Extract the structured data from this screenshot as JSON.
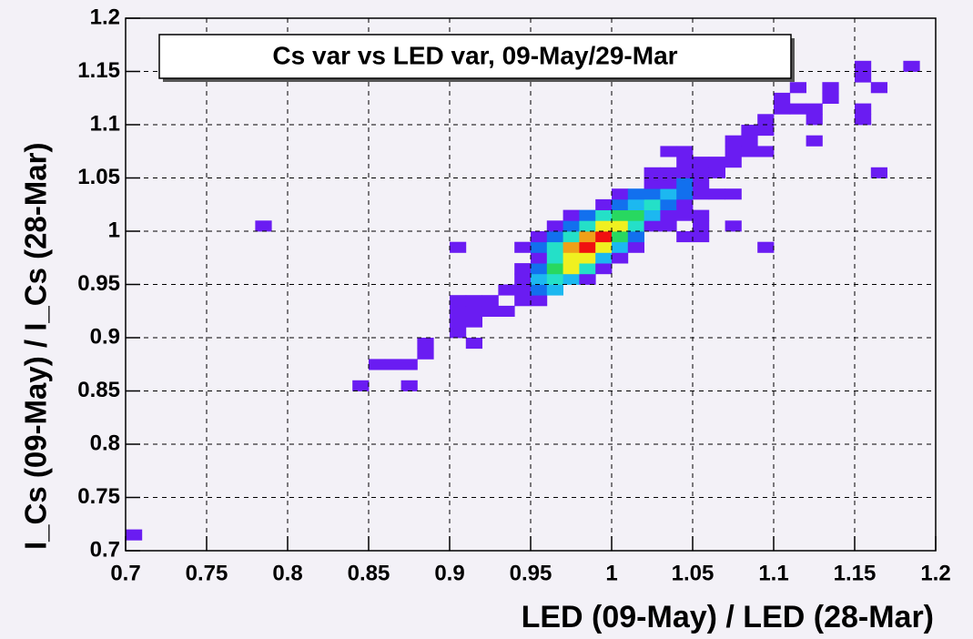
{
  "chart_data": {
    "type": "histogram2d",
    "title": "Cs var vs LED var, 09-May/29-Mar",
    "x_label": "LED (09-May) / LED (28-Mar)",
    "y_label": "I_Cs (09-May) / I_Cs (28-Mar)",
    "xlim": [
      0.7,
      1.2
    ],
    "ylim": [
      0.7,
      1.2
    ],
    "xticks": [
      0.7,
      0.75,
      0.8,
      0.85,
      0.9,
      0.95,
      1,
      1.05,
      1.1,
      1.15,
      1.2
    ],
    "yticks": [
      0.7,
      0.75,
      0.8,
      0.85,
      0.9,
      0.95,
      1,
      1.05,
      1.1,
      1.15,
      1.2
    ],
    "grid": true,
    "bin_size": 0.01,
    "palette": [
      "#6a1cf2",
      "#3a32f4",
      "#1270ee",
      "#1cb8f0",
      "#24e0c8",
      "#28d860",
      "#f0f020",
      "#f0a018",
      "#f01010"
    ],
    "cells": [
      [
        0.705,
        0.715,
        1
      ],
      [
        0.845,
        0.855,
        1
      ],
      [
        0.875,
        0.855,
        1
      ],
      [
        0.855,
        0.875,
        1
      ],
      [
        0.865,
        0.875,
        1
      ],
      [
        0.875,
        0.875,
        1
      ],
      [
        0.885,
        0.885,
        1
      ],
      [
        0.885,
        0.895,
        1
      ],
      [
        0.915,
        0.895,
        1
      ],
      [
        0.905,
        0.905,
        1
      ],
      [
        0.905,
        0.915,
        1
      ],
      [
        0.915,
        0.915,
        1
      ],
      [
        0.905,
        0.925,
        1
      ],
      [
        0.915,
        0.925,
        1
      ],
      [
        0.925,
        0.925,
        1
      ],
      [
        0.935,
        0.925,
        1
      ],
      [
        0.905,
        0.935,
        1
      ],
      [
        0.915,
        0.935,
        1
      ],
      [
        0.925,
        0.935,
        1
      ],
      [
        0.945,
        0.935,
        1
      ],
      [
        0.955,
        0.935,
        1
      ],
      [
        0.935,
        0.945,
        1
      ],
      [
        0.945,
        0.945,
        1
      ],
      [
        0.955,
        0.945,
        2
      ],
      [
        0.965,
        0.945,
        3
      ],
      [
        0.945,
        0.955,
        1
      ],
      [
        0.955,
        0.955,
        3
      ],
      [
        0.965,
        0.955,
        5
      ],
      [
        0.975,
        0.955,
        3
      ],
      [
        0.985,
        0.955,
        1
      ],
      [
        0.945,
        0.965,
        1
      ],
      [
        0.955,
        0.965,
        2
      ],
      [
        0.965,
        0.965,
        6
      ],
      [
        0.975,
        0.965,
        8
      ],
      [
        0.985,
        0.965,
        4
      ],
      [
        0.995,
        0.965,
        1
      ],
      [
        0.955,
        0.975,
        1
      ],
      [
        0.965,
        0.975,
        4
      ],
      [
        0.975,
        0.975,
        11
      ],
      [
        0.985,
        0.975,
        9
      ],
      [
        0.995,
        0.975,
        3
      ],
      [
        1.005,
        0.975,
        1
      ],
      [
        0.905,
        0.985,
        1
      ],
      [
        0.945,
        0.985,
        1
      ],
      [
        0.955,
        0.985,
        2
      ],
      [
        0.965,
        0.985,
        5
      ],
      [
        0.975,
        0.985,
        14
      ],
      [
        0.985,
        0.985,
        20
      ],
      [
        0.995,
        0.985,
        10
      ],
      [
        1.005,
        0.985,
        3
      ],
      [
        1.015,
        0.985,
        1
      ],
      [
        1.095,
        0.985,
        1
      ],
      [
        0.955,
        0.995,
        1
      ],
      [
        0.965,
        0.995,
        2
      ],
      [
        0.975,
        0.995,
        4
      ],
      [
        0.985,
        0.995,
        12
      ],
      [
        0.995,
        0.995,
        17
      ],
      [
        1.005,
        0.995,
        7
      ],
      [
        1.015,
        0.995,
        2
      ],
      [
        1.045,
        0.995,
        1
      ],
      [
        1.055,
        0.995,
        1
      ],
      [
        0.785,
        1.005,
        1
      ],
      [
        0.965,
        1.005,
        1
      ],
      [
        0.975,
        1.005,
        2
      ],
      [
        0.985,
        1.005,
        5
      ],
      [
        0.995,
        1.005,
        8
      ],
      [
        1.005,
        1.005,
        10
      ],
      [
        1.015,
        1.005,
        4
      ],
      [
        1.025,
        1.005,
        1
      ],
      [
        1.035,
        1.005,
        1
      ],
      [
        1.055,
        1.005,
        1
      ],
      [
        1.075,
        1.005,
        1
      ],
      [
        0.975,
        1.015,
        1
      ],
      [
        0.985,
        1.015,
        2
      ],
      [
        0.995,
        1.015,
        4
      ],
      [
        1.005,
        1.015,
        6
      ],
      [
        1.015,
        1.015,
        7
      ],
      [
        1.025,
        1.015,
        3
      ],
      [
        1.035,
        1.015,
        1
      ],
      [
        1.045,
        1.015,
        1
      ],
      [
        1.055,
        1.015,
        1
      ],
      [
        0.995,
        1.025,
        1
      ],
      [
        1.005,
        1.025,
        2
      ],
      [
        1.015,
        1.025,
        3
      ],
      [
        1.025,
        1.025,
        4
      ],
      [
        1.035,
        1.025,
        2
      ],
      [
        1.045,
        1.025,
        1
      ],
      [
        1.005,
        1.035,
        1
      ],
      [
        1.015,
        1.035,
        2
      ],
      [
        1.025,
        1.035,
        2
      ],
      [
        1.035,
        1.035,
        3
      ],
      [
        1.045,
        1.035,
        2
      ],
      [
        1.055,
        1.035,
        1
      ],
      [
        1.065,
        1.035,
        1
      ],
      [
        1.075,
        1.035,
        1
      ],
      [
        1.025,
        1.045,
        1
      ],
      [
        1.035,
        1.045,
        1
      ],
      [
        1.045,
        1.045,
        2
      ],
      [
        1.055,
        1.045,
        1
      ],
      [
        1.025,
        1.055,
        1
      ],
      [
        1.035,
        1.055,
        1
      ],
      [
        1.045,
        1.055,
        1
      ],
      [
        1.055,
        1.055,
        1
      ],
      [
        1.065,
        1.055,
        1
      ],
      [
        1.165,
        1.055,
        1
      ],
      [
        1.045,
        1.065,
        1
      ],
      [
        1.055,
        1.065,
        1
      ],
      [
        1.065,
        1.065,
        1
      ],
      [
        1.075,
        1.065,
        1
      ],
      [
        1.035,
        1.075,
        1
      ],
      [
        1.045,
        1.075,
        1
      ],
      [
        1.075,
        1.075,
        1
      ],
      [
        1.085,
        1.075,
        1
      ],
      [
        1.095,
        1.075,
        1
      ],
      [
        1.075,
        1.085,
        1
      ],
      [
        1.085,
        1.085,
        1
      ],
      [
        1.125,
        1.085,
        1
      ],
      [
        1.085,
        1.095,
        1
      ],
      [
        1.095,
        1.095,
        1
      ],
      [
        1.095,
        1.105,
        1
      ],
      [
        1.125,
        1.105,
        1
      ],
      [
        1.155,
        1.105,
        1
      ],
      [
        1.105,
        1.115,
        1
      ],
      [
        1.115,
        1.115,
        1
      ],
      [
        1.125,
        1.115,
        1
      ],
      [
        1.155,
        1.115,
        1
      ],
      [
        1.105,
        1.125,
        1
      ],
      [
        1.135,
        1.125,
        1
      ],
      [
        1.115,
        1.135,
        1
      ],
      [
        1.135,
        1.135,
        1
      ],
      [
        1.165,
        1.135,
        1
      ],
      [
        1.155,
        1.145,
        1
      ],
      [
        1.155,
        1.155,
        1
      ],
      [
        1.185,
        1.155,
        1
      ]
    ]
  }
}
